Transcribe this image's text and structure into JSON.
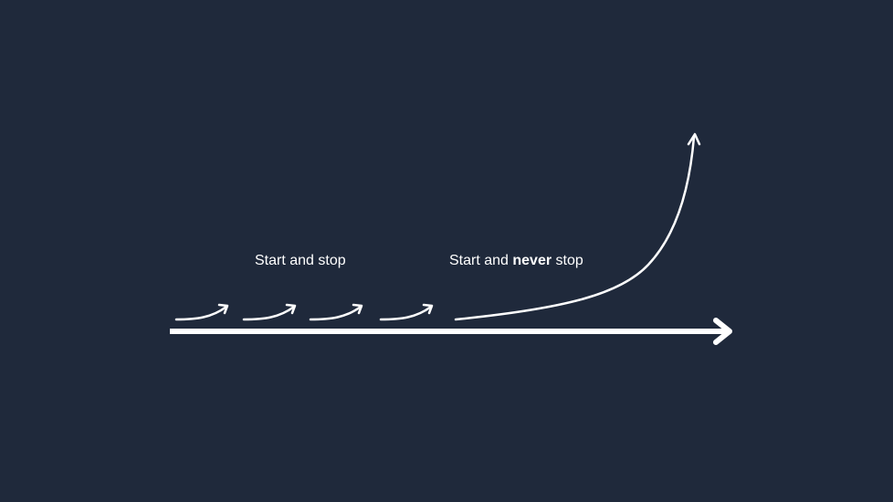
{
  "colors": {
    "background": "#1f293b",
    "foreground": "#ffffff"
  },
  "labels": {
    "start_and_stop": "Start and stop",
    "never_prefix": "Start and ",
    "never_emphasis": "never",
    "never_suffix": " stop"
  },
  "icons": {
    "small_arrow": "curved-up-arrow-icon",
    "big_arrow": "exponential-curve-arrow-icon",
    "axis_arrow": "right-arrow-icon"
  }
}
